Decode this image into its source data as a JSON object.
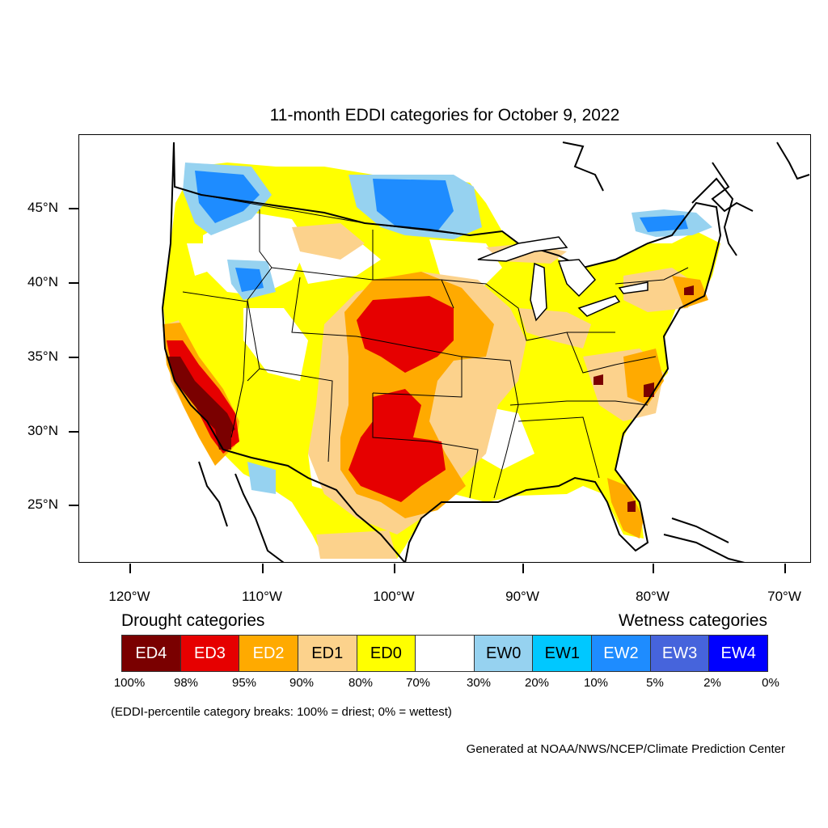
{
  "title": "11-month EDDI categories for October 9, 2022",
  "map": {
    "type": "choropleth",
    "region": "Contiguous United States",
    "latitude_labels": [
      "45°N",
      "40°N",
      "35°N",
      "30°N",
      "25°N"
    ],
    "longitude_labels": [
      "120°W",
      "110°W",
      "100°W",
      "90°W",
      "80°W",
      "70°W"
    ],
    "colors": {
      "ED4": "#7a0000",
      "ED3": "#e60000",
      "ED2": "#ffaa00",
      "ED1": "#fcd28c",
      "ED0": "#ffff00",
      "neutral": "#ffffff",
      "EW0": "#96d2f0",
      "EW1": "#00c8ff",
      "EW2": "#1e8cff",
      "EW3": "#4664dc",
      "EW4": "#0000ff"
    }
  },
  "legend": {
    "drought_title": "Drought categories",
    "wetness_title": "Wetness categories",
    "categories": [
      {
        "label": "ED4",
        "color": "#7a0000",
        "text_color": "#ffffff"
      },
      {
        "label": "ED3",
        "color": "#e60000",
        "text_color": "#ffffff"
      },
      {
        "label": "ED2",
        "color": "#ffaa00",
        "text_color": "#ffffff"
      },
      {
        "label": "ED1",
        "color": "#fcd28c",
        "text_color": "#000000"
      },
      {
        "label": "ED0",
        "color": "#ffff00",
        "text_color": "#000000"
      },
      {
        "label": "",
        "color": "#ffffff",
        "text_color": "#000000"
      },
      {
        "label": "EW0",
        "color": "#96d2f0",
        "text_color": "#000000"
      },
      {
        "label": "EW1",
        "color": "#00c8ff",
        "text_color": "#000000"
      },
      {
        "label": "EW2",
        "color": "#1e8cff",
        "text_color": "#ffffff"
      },
      {
        "label": "EW3",
        "color": "#4664dc",
        "text_color": "#ffffff"
      },
      {
        "label": "EW4",
        "color": "#0000ff",
        "text_color": "#ffffff"
      }
    ],
    "breaks": [
      "100%",
      "98%",
      "95%",
      "90%",
      "80%",
      "70%",
      "30%",
      "20%",
      "10%",
      "5%",
      "2%",
      "0%"
    ]
  },
  "note": "(EDDI-percentile category breaks: 100% = driest; 0% = wettest)",
  "credit": "Generated at NOAA/NWS/NCEP/Climate Prediction Center"
}
